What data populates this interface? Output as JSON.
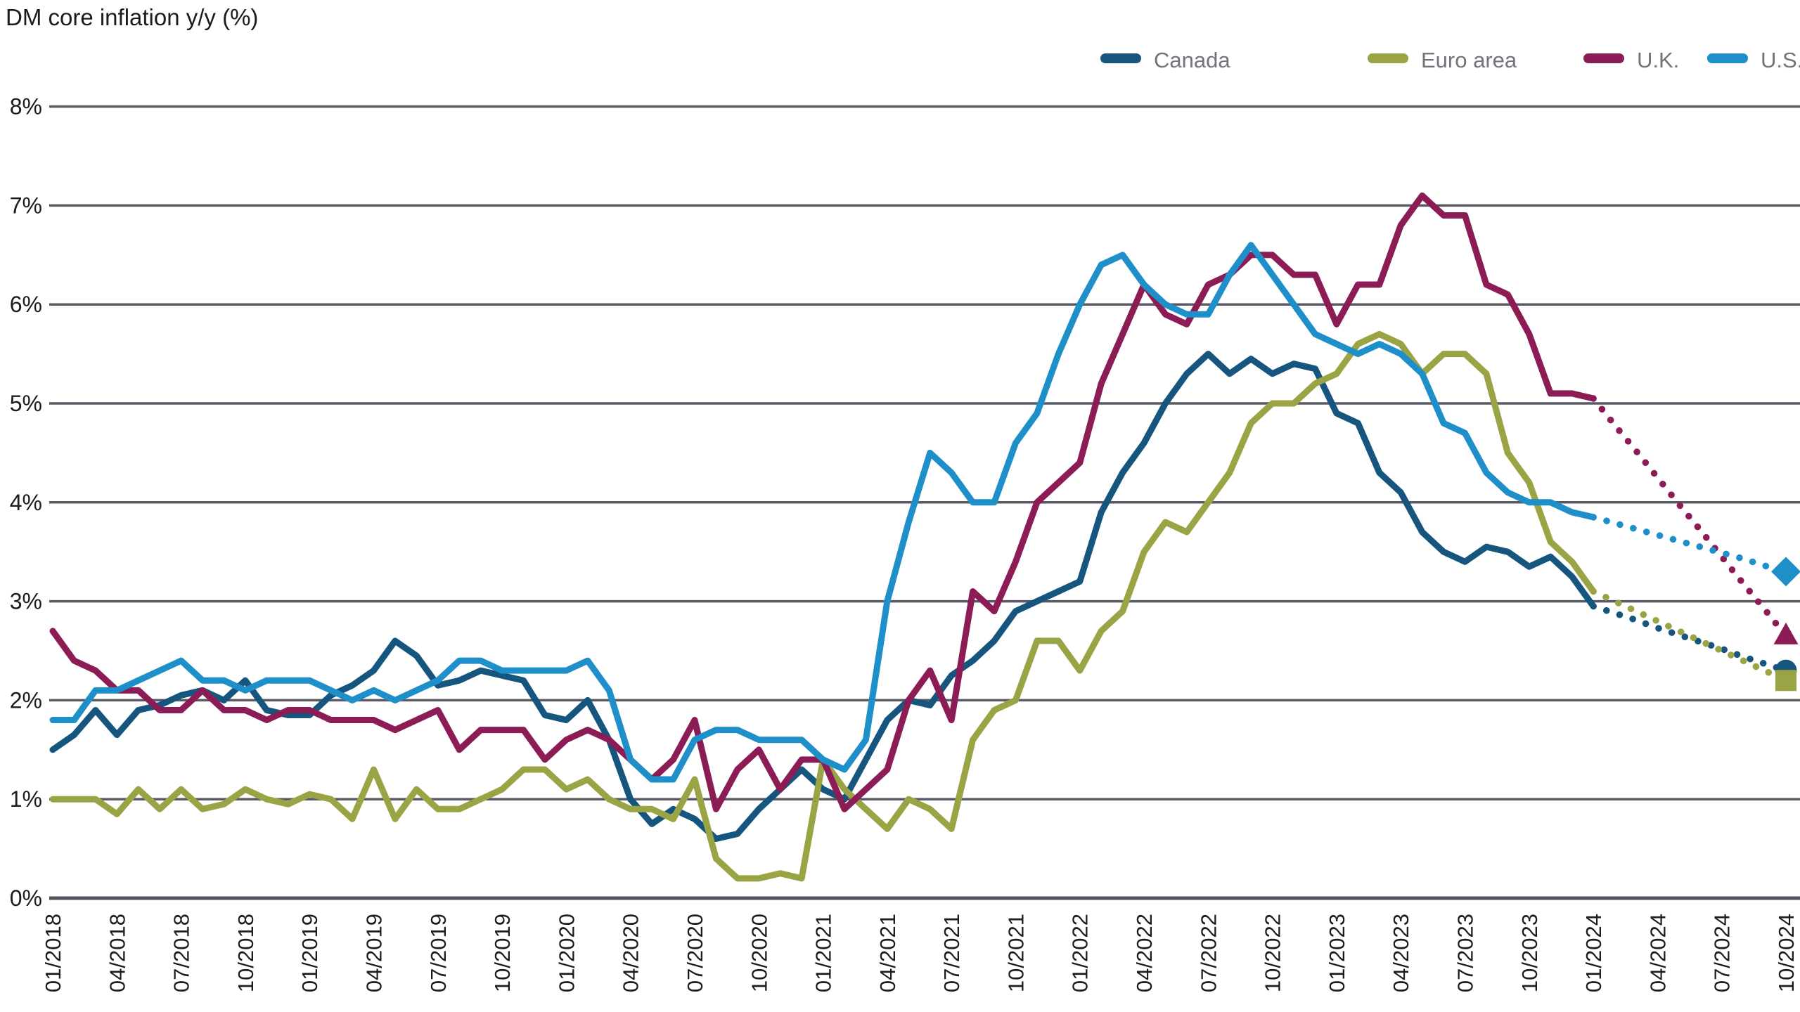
{
  "title": "DM core inflation y/y (%)",
  "chart_data": {
    "type": "line",
    "title": "DM core inflation y/y (%)",
    "grid": "horizontal",
    "grid_color": "#5a5a64",
    "axis_color": "#53535d",
    "tick_text_color": "#1c1c1c",
    "legend_text_color": "#73737b",
    "legend_position": "top-right",
    "ylim": [
      0,
      8
    ],
    "y_tick_labels": [
      "0%",
      "1%",
      "2%",
      "3%",
      "4%",
      "5%",
      "6%",
      "7%",
      "8%"
    ],
    "x_start": "01/2018",
    "x_end": "10/2024",
    "x_tick_labels": [
      "01/2018",
      "04/2018",
      "07/2018",
      "10/2018",
      "01/2019",
      "04/2019",
      "07/2019",
      "10/2019",
      "01/2020",
      "04/2020",
      "07/2020",
      "10/2020",
      "01/2021",
      "04/2021",
      "07/2021",
      "10/2021",
      "01/2022",
      "04/2022",
      "07/2022",
      "10/2022",
      "01/2023",
      "04/2023",
      "07/2023",
      "10/2023",
      "01/2024",
      "04/2024",
      "07/2024",
      "10/2024"
    ],
    "history_range": "01/2018 - 01/2024 (solid)",
    "forecast_range": "02/2024 - 10/2024 (dotted)",
    "series": [
      {
        "name": "Canada",
        "color": "#16567e",
        "marker": "circle",
        "values": [
          1.5,
          1.65,
          1.9,
          1.65,
          1.9,
          1.95,
          2.05,
          2.1,
          2.0,
          2.2,
          1.9,
          1.85,
          1.85,
          2.05,
          2.15,
          2.3,
          2.6,
          2.45,
          2.15,
          2.2,
          2.3,
          2.25,
          2.2,
          1.85,
          1.8,
          2.0,
          1.6,
          1.0,
          0.75,
          0.9,
          0.8,
          0.6,
          0.65,
          0.9,
          1.1,
          1.3,
          1.1,
          1.0,
          1.4,
          1.8,
          2.0,
          1.95,
          2.25,
          2.4,
          2.6,
          2.9,
          3.0,
          3.1,
          3.2,
          3.9,
          4.3,
          4.6,
          5.0,
          5.3,
          5.5,
          5.3,
          5.45,
          5.3,
          5.4,
          5.35,
          4.9,
          4.8,
          4.3,
          4.1,
          3.7,
          3.5,
          3.4,
          3.55,
          3.5,
          3.35,
          3.45,
          3.25,
          2.95
        ],
        "forecast": [
          2.95,
          2.88,
          2.81,
          2.73,
          2.66,
          2.59,
          2.52,
          2.44,
          2.37,
          2.3
        ],
        "forecast_end_value": 2.3
      },
      {
        "name": "Euro area",
        "color": "#9aa444",
        "marker": "square",
        "values": [
          1.0,
          1.0,
          1.0,
          0.85,
          1.1,
          0.9,
          1.1,
          0.9,
          0.95,
          1.1,
          1.0,
          0.95,
          1.05,
          1.0,
          0.8,
          1.3,
          0.8,
          1.1,
          0.9,
          0.9,
          1.0,
          1.1,
          1.3,
          1.3,
          1.1,
          1.2,
          1.0,
          0.9,
          0.9,
          0.8,
          1.2,
          0.4,
          0.2,
          0.2,
          0.25,
          0.2,
          1.4,
          1.1,
          0.9,
          0.7,
          1.0,
          0.9,
          0.7,
          1.6,
          1.9,
          2.0,
          2.6,
          2.6,
          2.3,
          2.7,
          2.9,
          3.5,
          3.8,
          3.7,
          4.0,
          4.3,
          4.8,
          5.0,
          5.0,
          5.2,
          5.3,
          5.6,
          5.7,
          5.6,
          5.3,
          5.5,
          5.5,
          5.3,
          4.5,
          4.2,
          3.6,
          3.4,
          3.1
        ],
        "forecast": [
          3.1,
          3.0,
          2.9,
          2.8,
          2.7,
          2.6,
          2.5,
          2.4,
          2.3,
          2.2
        ],
        "forecast_end_value": 2.2
      },
      {
        "name": "U.K.",
        "color": "#8b1c56",
        "marker": "triangle",
        "values": [
          2.7,
          2.4,
          2.3,
          2.1,
          2.1,
          1.9,
          1.9,
          2.1,
          1.9,
          1.9,
          1.8,
          1.9,
          1.9,
          1.8,
          1.8,
          1.8,
          1.7,
          1.8,
          1.9,
          1.5,
          1.7,
          1.7,
          1.7,
          1.4,
          1.6,
          1.7,
          1.6,
          1.4,
          1.2,
          1.4,
          1.8,
          0.9,
          1.3,
          1.5,
          1.1,
          1.4,
          1.4,
          0.9,
          1.1,
          1.3,
          2.0,
          2.3,
          1.8,
          3.1,
          2.9,
          3.4,
          4.0,
          4.2,
          4.4,
          5.2,
          5.7,
          6.2,
          5.9,
          5.8,
          6.2,
          6.3,
          6.5,
          6.5,
          6.3,
          6.3,
          5.8,
          6.2,
          6.2,
          6.8,
          7.1,
          6.9,
          6.9,
          6.2,
          6.1,
          5.7,
          5.1,
          5.1,
          5.05
        ],
        "forecast": [
          5.05,
          4.78,
          4.52,
          4.25,
          3.98,
          3.72,
          3.45,
          3.18,
          2.92,
          2.65
        ],
        "forecast_end_value": 2.65
      },
      {
        "name": "U.S.",
        "color": "#1e8fc9",
        "marker": "diamond",
        "values": [
          1.8,
          1.8,
          2.1,
          2.1,
          2.2,
          2.3,
          2.4,
          2.2,
          2.2,
          2.1,
          2.2,
          2.2,
          2.2,
          2.1,
          2.0,
          2.1,
          2.0,
          2.1,
          2.2,
          2.4,
          2.4,
          2.3,
          2.3,
          2.3,
          2.3,
          2.4,
          2.1,
          1.4,
          1.2,
          1.2,
          1.6,
          1.7,
          1.7,
          1.6,
          1.6,
          1.6,
          1.4,
          1.3,
          1.6,
          3.0,
          3.8,
          4.5,
          4.3,
          4.0,
          4.0,
          4.6,
          4.9,
          5.5,
          6.0,
          6.4,
          6.5,
          6.2,
          6.0,
          5.9,
          5.9,
          6.3,
          6.6,
          6.3,
          6.0,
          5.7,
          5.6,
          5.5,
          5.6,
          5.5,
          5.3,
          4.8,
          4.7,
          4.3,
          4.1,
          4.0,
          4.0,
          3.9,
          3.85
        ],
        "forecast": [
          3.85,
          3.79,
          3.73,
          3.67,
          3.61,
          3.55,
          3.49,
          3.43,
          3.36,
          3.3
        ],
        "forecast_end_value": 3.3
      }
    ]
  }
}
